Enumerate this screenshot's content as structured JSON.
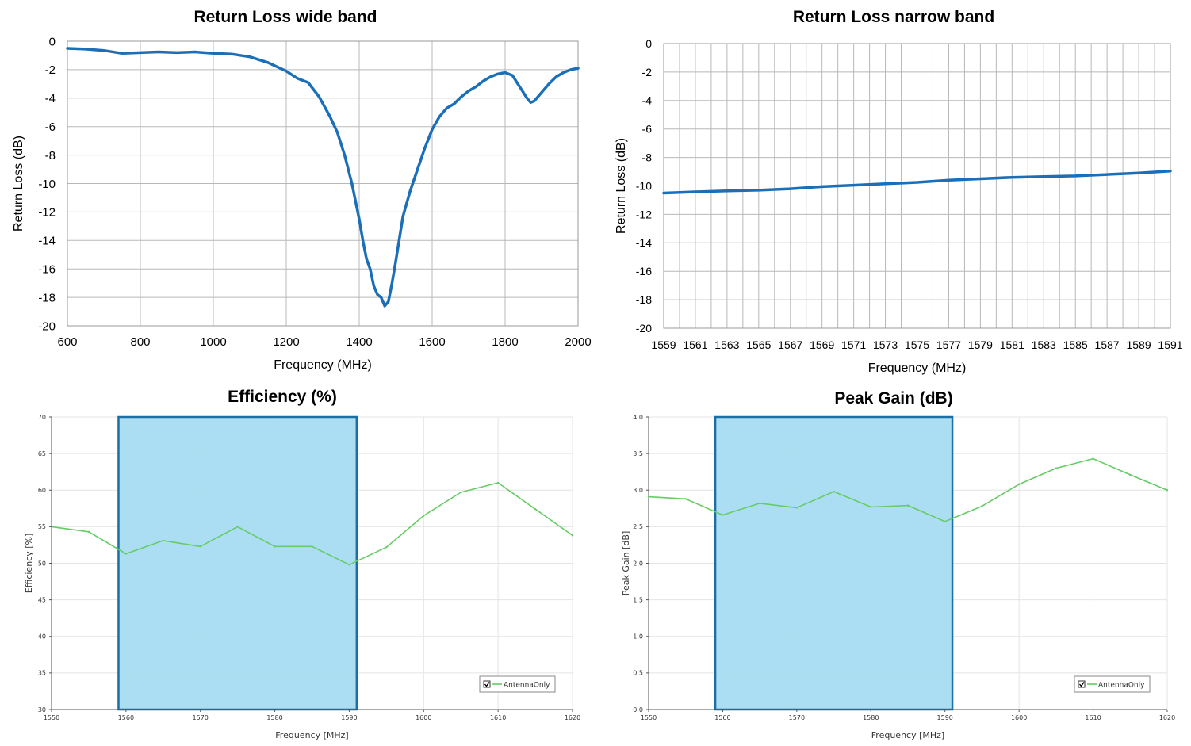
{
  "chart_data": [
    {
      "type": "line",
      "title": "Return Loss wide band",
      "xlabel": "Frequency (MHz)",
      "ylabel": "Return Loss (dB)",
      "xlim": [
        600,
        2000
      ],
      "ylim": [
        -20,
        0
      ],
      "x_ticks": [
        600,
        800,
        1000,
        1200,
        1400,
        1600,
        1800,
        2000
      ],
      "y_ticks": [
        0,
        -2,
        -4,
        -6,
        -8,
        -10,
        -12,
        -14,
        -16,
        -18,
        -20
      ],
      "grid": true,
      "line_color": "#1b6fb8",
      "series": [
        {
          "x": [
            600,
            650,
            700,
            750,
            800,
            850,
            900,
            950,
            1000,
            1050,
            1100,
            1150,
            1200,
            1230,
            1260,
            1290,
            1320,
            1340,
            1360,
            1380,
            1400,
            1410,
            1420,
            1430,
            1440,
            1450,
            1460,
            1470,
            1480,
            1490,
            1500,
            1520,
            1540,
            1560,
            1580,
            1600,
            1620,
            1640,
            1660,
            1680,
            1700,
            1720,
            1740,
            1760,
            1780,
            1800,
            1820,
            1840,
            1860,
            1870,
            1880,
            1900,
            1920,
            1940,
            1960,
            1980,
            2000
          ],
          "y": [
            -0.5,
            -0.55,
            -0.65,
            -0.85,
            -0.8,
            -0.75,
            -0.8,
            -0.75,
            -0.85,
            -0.9,
            -1.1,
            -1.5,
            -2.1,
            -2.6,
            -2.9,
            -3.9,
            -5.3,
            -6.4,
            -8.0,
            -10.0,
            -12.5,
            -14.0,
            -15.3,
            -16.0,
            -17.2,
            -17.8,
            -18.0,
            -18.6,
            -18.3,
            -17.0,
            -15.5,
            -12.3,
            -10.5,
            -9.0,
            -7.5,
            -6.2,
            -5.3,
            -4.7,
            -4.4,
            -3.9,
            -3.5,
            -3.2,
            -2.8,
            -2.5,
            -2.3,
            -2.2,
            -2.4,
            -3.2,
            -4.0,
            -4.3,
            -4.2,
            -3.6,
            -3.0,
            -2.5,
            -2.2,
            -2.0,
            -1.9
          ]
        }
      ]
    },
    {
      "type": "line",
      "title": "Return Loss narrow band",
      "xlabel": "Frequency (MHz)",
      "ylabel": "Return Loss (dB)",
      "xlim": [
        1559,
        1591
      ],
      "ylim": [
        -20,
        0
      ],
      "x_ticks": [
        1559,
        1561,
        1563,
        1565,
        1567,
        1569,
        1571,
        1573,
        1575,
        1577,
        1579,
        1581,
        1583,
        1585,
        1587,
        1589,
        1591
      ],
      "y_ticks": [
        0,
        -2,
        -4,
        -6,
        -8,
        -10,
        -12,
        -14,
        -16,
        -18,
        -20
      ],
      "grid": true,
      "line_color": "#1b6fb8",
      "series": [
        {
          "x": [
            1559,
            1561,
            1563,
            1565,
            1567,
            1569,
            1571,
            1573,
            1575,
            1577,
            1579,
            1581,
            1583,
            1585,
            1587,
            1589,
            1591
          ],
          "y": [
            -10.5,
            -10.42,
            -10.35,
            -10.3,
            -10.2,
            -10.05,
            -9.95,
            -9.85,
            -9.75,
            -9.6,
            -9.5,
            -9.4,
            -9.35,
            -9.3,
            -9.2,
            -9.1,
            -8.95
          ]
        }
      ]
    },
    {
      "type": "line",
      "title": "Efficiency (%)",
      "xlabel": "Frequency [MHz]",
      "ylabel": "Efficiency [%]",
      "xlim": [
        1550,
        1620
      ],
      "ylim": [
        30,
        70
      ],
      "x_ticks": [
        1550,
        1560,
        1570,
        1580,
        1590,
        1600,
        1610,
        1620
      ],
      "y_ticks": [
        30,
        35,
        40,
        45,
        50,
        55,
        60,
        65,
        70
      ],
      "grid": true,
      "legend": "bottom-right",
      "highlight_band": [
        1559,
        1591
      ],
      "band_color": "#a8dcf2",
      "band_edge_color": "#1a6fa3",
      "line_color": "#66cc66",
      "series": [
        {
          "name": "AntennaOnly",
          "x": [
            1550,
            1555,
            1560,
            1565,
            1570,
            1575,
            1580,
            1585,
            1590,
            1595,
            1600,
            1605,
            1610,
            1615,
            1620
          ],
          "y": [
            55.0,
            54.3,
            51.3,
            53.1,
            52.3,
            55.0,
            52.3,
            52.3,
            49.8,
            52.2,
            56.5,
            59.7,
            61.0,
            57.4,
            53.8
          ]
        }
      ]
    },
    {
      "type": "line",
      "title": "Peak Gain (dB)",
      "xlabel": "Frequency [MHz]",
      "ylabel": "Peak Gain [dB]",
      "xlim": [
        1550,
        1620
      ],
      "ylim": [
        0,
        4
      ],
      "x_ticks": [
        1550,
        1560,
        1570,
        1580,
        1590,
        1600,
        1610,
        1620
      ],
      "y_ticks": [
        "0.0",
        "0.5",
        "1.0",
        "1.5",
        "2.0",
        "2.5",
        "3.0",
        "3.5",
        "4.0"
      ],
      "grid": true,
      "legend": "bottom-right",
      "highlight_band": [
        1559,
        1591
      ],
      "band_color": "#a8dcf2",
      "band_edge_color": "#1a6fa3",
      "line_color": "#66cc66",
      "series": [
        {
          "name": "AntennaOnly",
          "x": [
            1550,
            1555,
            1560,
            1565,
            1570,
            1575,
            1580,
            1585,
            1590,
            1595,
            1600,
            1605,
            1610,
            1615,
            1620
          ],
          "y": [
            2.91,
            2.88,
            2.66,
            2.82,
            2.76,
            2.98,
            2.77,
            2.79,
            2.57,
            2.78,
            3.08,
            3.3,
            3.43,
            3.21,
            3.0
          ]
        }
      ]
    }
  ]
}
